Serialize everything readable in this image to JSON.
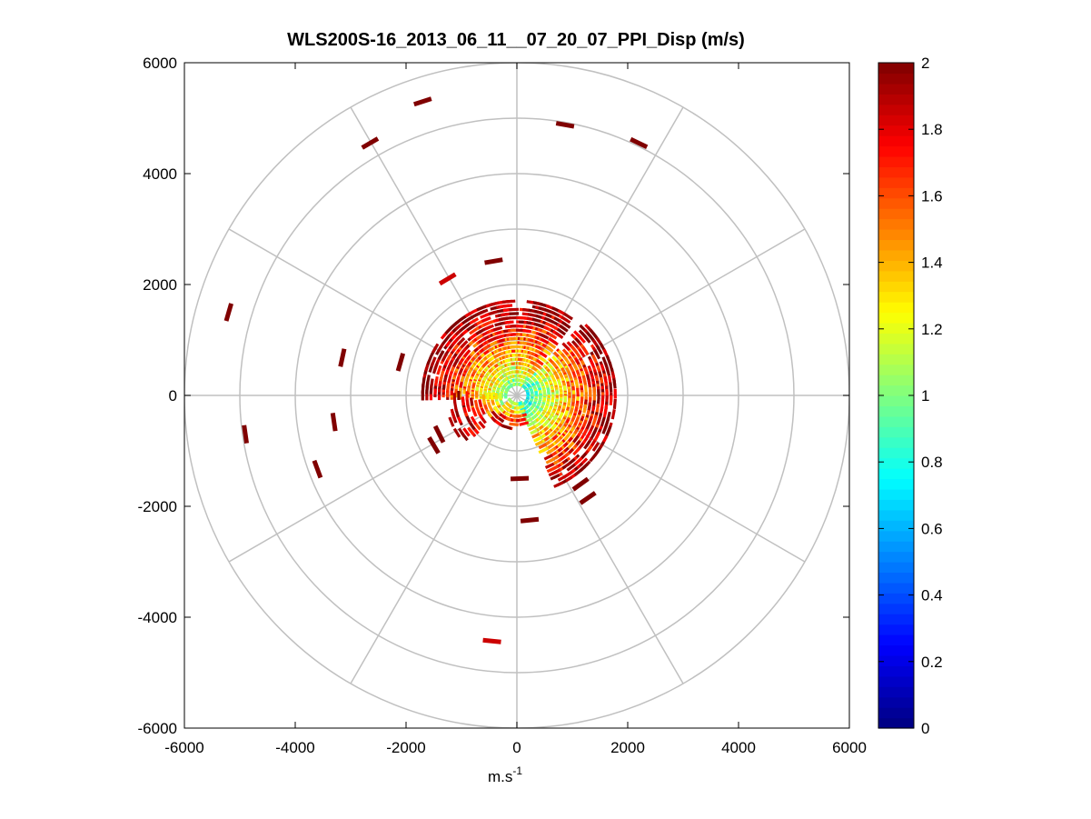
{
  "chart_data": {
    "type": "polar-scatter",
    "title": "WLS200S-16_2013_06_11__07_20_07_PPI_Disp (m/s)",
    "xlabel": "m.s",
    "xlabel_sup": "-1",
    "ylabel": "",
    "xlim": [
      -6000,
      6000
    ],
    "ylim": [
      -6000,
      6000
    ],
    "xticks": [
      -6000,
      -4000,
      -2000,
      0,
      2000,
      4000,
      6000
    ],
    "yticks": [
      6000,
      4000,
      2000,
      0,
      -2000,
      -4000,
      -6000
    ],
    "xtick_labels": [
      "-6000",
      "-4000",
      "-2000",
      "0",
      "2000",
      "4000",
      "6000"
    ],
    "ytick_labels": [
      "6000",
      "4000",
      "2000",
      "0",
      "-2000",
      "-4000",
      "-6000"
    ],
    "polar_grid": {
      "rings": [
        1000,
        2000,
        3000,
        4000,
        5000,
        6000
      ],
      "spokes_deg": [
        0,
        30,
        60,
        90,
        120,
        150,
        180,
        210,
        240,
        270,
        300,
        330
      ]
    },
    "colorbar": {
      "colormap": "jet",
      "clim": [
        0,
        2
      ],
      "ticks": [
        0,
        0.2,
        0.4,
        0.6,
        0.8,
        1,
        1.2,
        1.4,
        1.6,
        1.8,
        2
      ],
      "tick_labels": [
        "0",
        "0.2",
        "0.4",
        "0.6",
        "0.8",
        "1",
        "1.2",
        "1.4",
        "1.6",
        "1.8",
        "2"
      ]
    },
    "sector_data": [
      {
        "name": "north-west",
        "az_start": 270,
        "az_end": 358,
        "r_min": 200,
        "r_max": 1700,
        "value_near": 0.95,
        "value_far": 2.0
      },
      {
        "name": "north-east",
        "az_start": 3,
        "az_end": 35,
        "r_min": 200,
        "r_max": 1700,
        "value_near": 1.0,
        "value_far": 2.0
      },
      {
        "name": "east",
        "az_start": 45,
        "az_end": 155,
        "r_min": 200,
        "r_max": 1800,
        "value_near": 0.75,
        "value_far": 2.0
      },
      {
        "name": "south",
        "az_start": 160,
        "az_end": 230,
        "r_min": 150,
        "r_max": 600,
        "value_near": 1.0,
        "value_far": 1.9
      },
      {
        "name": "west-sparse",
        "az_start": 230,
        "az_end": 270,
        "r_min": 300,
        "r_max": 1300,
        "value_near": 1.2,
        "value_far": 2.0
      }
    ],
    "far_points": [
      {
        "x": -1700,
        "y": 5300,
        "value": 2.0
      },
      {
        "x": -2650,
        "y": 4550,
        "value": 2.0
      },
      {
        "x": 870,
        "y": 4880,
        "value": 2.0
      },
      {
        "x": 2200,
        "y": 4550,
        "value": 2.0
      },
      {
        "x": -5200,
        "y": 1500,
        "value": 2.0
      },
      {
        "x": -3150,
        "y": 680,
        "value": 2.0
      },
      {
        "x": -2100,
        "y": 600,
        "value": 2.0
      },
      {
        "x": -4900,
        "y": -700,
        "value": 2.0
      },
      {
        "x": -3300,
        "y": -480,
        "value": 2.0
      },
      {
        "x": -3600,
        "y": -1330,
        "value": 2.0
      },
      {
        "x": -420,
        "y": 2420,
        "value": 2.0
      },
      {
        "x": -1250,
        "y": 2100,
        "value": 1.85
      },
      {
        "x": 1280,
        "y": -1850,
        "value": 2.0
      },
      {
        "x": 230,
        "y": -2250,
        "value": 2.0
      },
      {
        "x": -450,
        "y": -4430,
        "value": 1.85
      },
      {
        "x": -1400,
        "y": -700,
        "value": 2.0
      },
      {
        "x": -1500,
        "y": -900,
        "value": 2.0
      },
      {
        "x": 1150,
        "y": -1600,
        "value": 2.0
      },
      {
        "x": 50,
        "y": -1500,
        "value": 2.0
      }
    ]
  }
}
